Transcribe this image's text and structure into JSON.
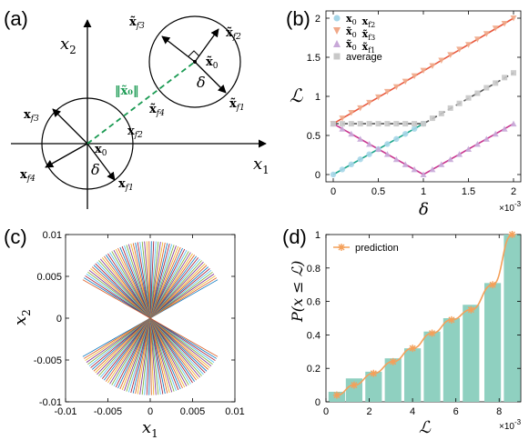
{
  "panel_labels": {
    "a": "(a)",
    "b": "(b)",
    "c": "(c)",
    "d": "(d)"
  },
  "diagram_a": {
    "axis_x": "x",
    "axis_x_sub": "1",
    "axis_y": "x",
    "axis_y_sub": "2",
    "center_low": "x",
    "center_low_sub": "0",
    "delta_low": "δ",
    "center_high": "x̃",
    "center_high_sub": "0",
    "delta_high": "δ",
    "norm_label": "‖x̃₀‖",
    "low_vectors": [
      {
        "name": "x",
        "sub": "f1"
      },
      {
        "name": "x",
        "sub": "f2"
      },
      {
        "name": "x",
        "sub": "f3"
      },
      {
        "name": "x",
        "sub": "f4"
      }
    ],
    "high_vectors": [
      {
        "name": "x̃",
        "sub": "f1"
      },
      {
        "name": "x̃",
        "sub": "f2"
      },
      {
        "name": "x̃",
        "sub": "f3"
      },
      {
        "name": "x̃",
        "sub": "f4"
      }
    ],
    "colors": {
      "dashed": "#1a9a52"
    }
  },
  "chart_data": [
    {
      "panel": "b",
      "type": "line",
      "ylabel": "ℒ",
      "xlabel": "δ",
      "x_multiplier": "×10",
      "x_exponent": "-3",
      "xlim": [
        0,
        2
      ],
      "ylim": [
        0,
        2
      ],
      "xticks": [
        "0",
        "0.5",
        "1",
        "1.5",
        "2"
      ],
      "yticks": [
        "0",
        "0.5",
        "1",
        "1.5",
        "2"
      ],
      "legend_position": "top-left",
      "series": [
        {
          "name": "x₀ x_f2",
          "color": "#1aa58a",
          "marker_color": "#a6d6e8",
          "marker": "circle",
          "line": [
            [
              0,
              0
            ],
            [
              1,
              0.65
            ]
          ],
          "points": [
            [
              0,
              0
            ],
            [
              0.1,
              0.065
            ],
            [
              0.2,
              0.13
            ],
            [
              0.3,
              0.195
            ],
            [
              0.4,
              0.26
            ],
            [
              0.5,
              0.325
            ],
            [
              0.6,
              0.39
            ],
            [
              0.7,
              0.455
            ],
            [
              0.8,
              0.52
            ],
            [
              0.9,
              0.585
            ],
            [
              1,
              0.65
            ]
          ]
        },
        {
          "name": "x̃₀ x̃_f3",
          "color": "#e8573c",
          "marker_color": "#f0a888",
          "marker": "triangle-down",
          "line": [
            [
              0,
              0.65
            ],
            [
              2,
              2
            ]
          ],
          "points": [
            [
              0,
              0.65
            ],
            [
              0.1,
              0.72
            ],
            [
              0.2,
              0.79
            ],
            [
              0.3,
              0.85
            ],
            [
              0.4,
              0.92
            ],
            [
              0.5,
              0.99
            ],
            [
              0.6,
              1.06
            ],
            [
              0.7,
              1.12
            ],
            [
              0.8,
              1.19
            ],
            [
              0.9,
              1.26
            ],
            [
              1,
              1.33
            ],
            [
              1.1,
              1.39
            ],
            [
              1.2,
              1.46
            ],
            [
              1.3,
              1.53
            ],
            [
              1.4,
              1.6
            ],
            [
              1.5,
              1.66
            ],
            [
              1.6,
              1.73
            ],
            [
              1.7,
              1.8
            ],
            [
              1.8,
              1.87
            ],
            [
              1.9,
              1.93
            ],
            [
              2,
              2
            ]
          ]
        },
        {
          "name": "x̃₀ x̃_f1",
          "color": "#c8358f",
          "marker_color": "#c8a8d8",
          "marker": "triangle-up",
          "line": [
            [
              0,
              0.65
            ],
            [
              1,
              0
            ],
            [
              2,
              0.65
            ]
          ],
          "points": [
            [
              0,
              0.65
            ],
            [
              0.1,
              0.585
            ],
            [
              0.2,
              0.52
            ],
            [
              0.3,
              0.455
            ],
            [
              0.4,
              0.39
            ],
            [
              0.5,
              0.325
            ],
            [
              0.6,
              0.26
            ],
            [
              0.7,
              0.195
            ],
            [
              0.8,
              0.13
            ],
            [
              0.9,
              0.065
            ],
            [
              1,
              0
            ],
            [
              1.1,
              0.065
            ],
            [
              1.2,
              0.13
            ],
            [
              1.3,
              0.195
            ],
            [
              1.4,
              0.26
            ],
            [
              1.5,
              0.325
            ],
            [
              1.6,
              0.39
            ],
            [
              1.7,
              0.455
            ],
            [
              1.8,
              0.52
            ],
            [
              1.9,
              0.585
            ],
            [
              2,
              0.65
            ]
          ]
        },
        {
          "name": "average",
          "color": "#555555",
          "marker_color": "#c8c8c8",
          "marker": "square",
          "line": [
            [
              0,
              0.65
            ],
            [
              1,
              0.65
            ],
            [
              2,
              1.3
            ]
          ],
          "points": [
            [
              0,
              0.65
            ],
            [
              0.1,
              0.65
            ],
            [
              0.2,
              0.65
            ],
            [
              0.3,
              0.65
            ],
            [
              0.4,
              0.65
            ],
            [
              0.5,
              0.65
            ],
            [
              0.6,
              0.65
            ],
            [
              0.7,
              0.65
            ],
            [
              0.8,
              0.65
            ],
            [
              0.9,
              0.65
            ],
            [
              1,
              0.65
            ],
            [
              1.1,
              0.72
            ],
            [
              1.2,
              0.78
            ],
            [
              1.3,
              0.85
            ],
            [
              1.4,
              0.91
            ],
            [
              1.5,
              0.98
            ],
            [
              1.6,
              1.04
            ],
            [
              1.7,
              1.11
            ],
            [
              1.8,
              1.17
            ],
            [
              1.9,
              1.24
            ],
            [
              2,
              1.3
            ]
          ]
        }
      ],
      "legend_entries": [
        {
          "label": "x₀  x_f2",
          "parts": [
            [
              "x",
              "0"
            ],
            [
              "x",
              "f2"
            ]
          ]
        },
        {
          "label": "x̃₀  x̃_f3",
          "parts": [
            [
              "x̃",
              "0"
            ],
            [
              "x̃",
              "f3"
            ]
          ]
        },
        {
          "label": "x̃₀  x̃_f1",
          "parts": [
            [
              "x̃",
              "0"
            ],
            [
              "x̃",
              "f1"
            ]
          ]
        },
        {
          "label": "average",
          "parts": []
        }
      ]
    },
    {
      "panel": "c",
      "type": "line",
      "xlabel": "x",
      "xlabel_sub": "1",
      "ylabel": "x",
      "ylabel_sub": "2",
      "xlim": [
        -0.01,
        0.01
      ],
      "ylim": [
        -0.01,
        0.01
      ],
      "xticks": [
        "-0.01",
        "-0.005",
        "0",
        "0.005",
        "0.01"
      ],
      "yticks": [
        "-0.01",
        "-0.005",
        "0",
        "0.005",
        "0.01"
      ],
      "description_values": {
        "num_lines": 72,
        "radius": 0.0092,
        "span_degrees": [
          30,
          150
        ]
      },
      "colors": [
        "#0072bd",
        "#d95319",
        "#edb120",
        "#7e2f8e",
        "#77ac30",
        "#4dbeee",
        "#a2142f"
      ]
    },
    {
      "panel": "d",
      "type": "bar",
      "ylabel": "P(x ≤ ℒ)",
      "xlabel": "ℒ",
      "x_multiplier": "×10",
      "x_exponent": "-3",
      "xlim": [
        0,
        9
      ],
      "ylim": [
        0,
        1
      ],
      "xticks": [
        "0",
        "2",
        "4",
        "6",
        "8"
      ],
      "yticks": [
        "0",
        "0.2",
        "0.4",
        "0.6",
        "0.8",
        "1"
      ],
      "legend_position": "top-left",
      "bar_color": "#8fd0c0",
      "categories": [
        0.5,
        1.3,
        2.2,
        3.1,
        4.0,
        4.9,
        5.8,
        6.7,
        7.7,
        8.6
      ],
      "values": [
        0.06,
        0.14,
        0.18,
        0.26,
        0.32,
        0.42,
        0.5,
        0.58,
        0.71,
        1.0
      ],
      "series": [
        {
          "name": "prediction",
          "color": "#f4a05a",
          "x": [
            0.5,
            1.3,
            2.2,
            3.1,
            4.0,
            4.9,
            5.8,
            6.7,
            7.7,
            8.6
          ],
          "values": [
            0.04,
            0.1,
            0.17,
            0.24,
            0.32,
            0.41,
            0.49,
            0.55,
            0.7,
            1.0
          ]
        }
      ]
    }
  ]
}
